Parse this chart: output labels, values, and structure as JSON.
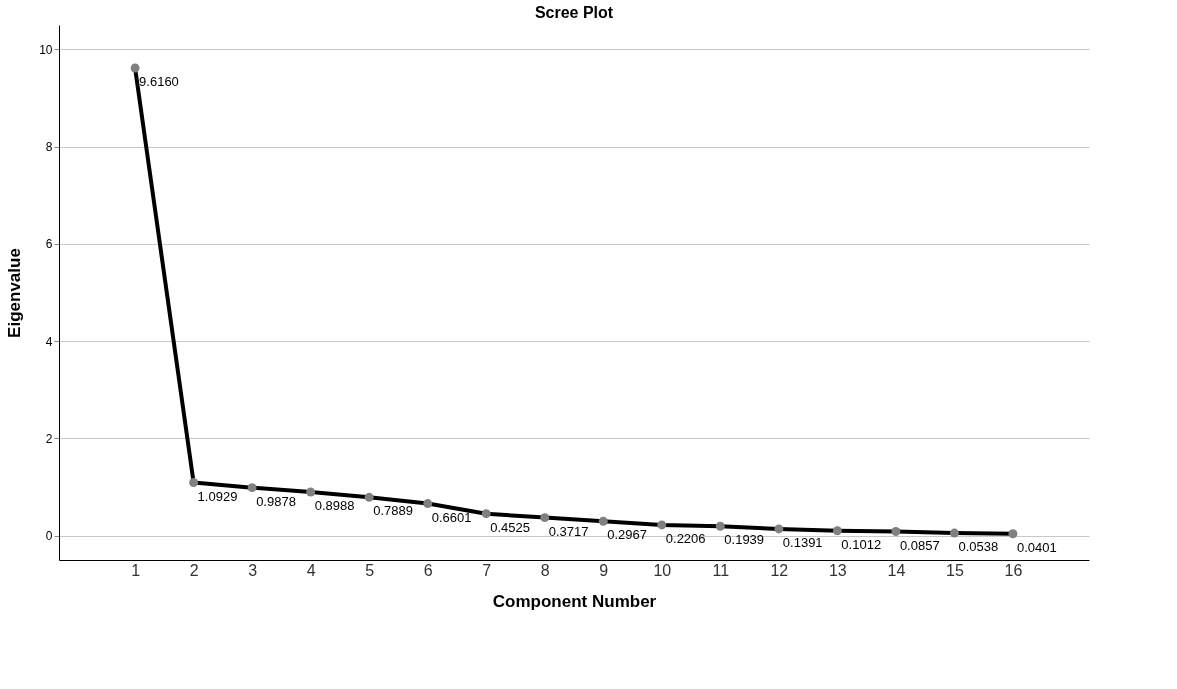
{
  "chart_data": {
    "type": "line",
    "title": "Scree Plot",
    "xlabel": "Component Number",
    "ylabel": "Eigenvalue",
    "x": [
      1,
      2,
      3,
      4,
      5,
      6,
      7,
      8,
      9,
      10,
      11,
      12,
      13,
      14,
      15,
      16
    ],
    "xlim": [
      -0.3,
      17.3
    ],
    "xticks": [
      1,
      2,
      3,
      4,
      5,
      6,
      7,
      8,
      9,
      10,
      11,
      12,
      13,
      14,
      15,
      16
    ],
    "series": [
      {
        "color": "#000000",
        "values": [
          9.616,
          1.0929,
          0.9878,
          0.8988,
          0.7889,
          0.6601,
          0.4525,
          0.3717,
          0.2967,
          0.2206,
          0.1939,
          0.1391,
          0.1012,
          0.0857,
          0.0538,
          0.0401
        ]
      }
    ],
    "value_labels": [
      "9.6160",
      "1.0929",
      "0.9878",
      "0.8988",
      "0.7889",
      "0.6601",
      "0.4525",
      "0.3717",
      "0.2967",
      "0.2206",
      "0.1939",
      "0.1391",
      "0.1012",
      "0.0857",
      "0.0538",
      "0.0401"
    ],
    "ylim": [
      -0.5,
      10.5
    ],
    "yticks": [
      0,
      2,
      4,
      6,
      8,
      10
    ],
    "grid": "y",
    "marker": "circle",
    "line_style": "solid"
  }
}
